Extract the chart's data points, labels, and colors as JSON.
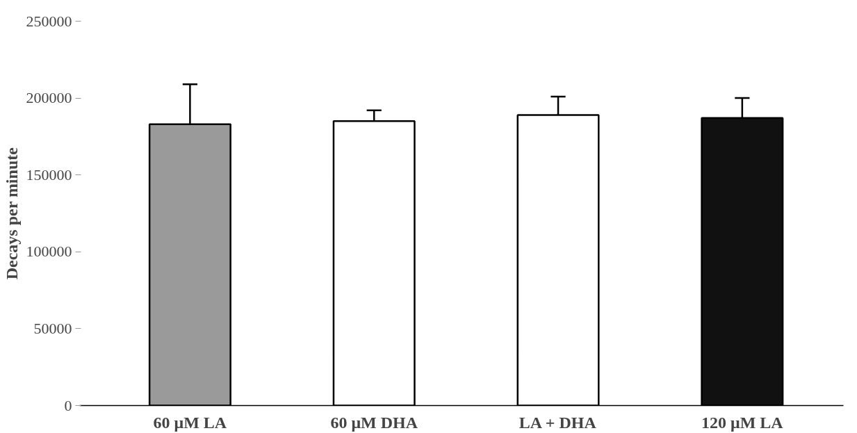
{
  "chart_data": {
    "type": "bar",
    "ylabel": "Decays per minute",
    "categories": [
      "60 μM LA",
      "60 μM DHA",
      "LA + DHA",
      "120 μM LA"
    ],
    "values": [
      183000,
      185000,
      189000,
      187000
    ],
    "colors": [
      "#9a9a9a",
      "#ffffff",
      "#ffffff",
      "#111111"
    ],
    "errors": [
      [
        183000,
        209000
      ],
      [
        185000,
        192000
      ],
      [
        189000,
        201000
      ],
      [
        187000,
        200000
      ]
    ],
    "ylim": [
      0,
      250000
    ],
    "yticks": [
      0,
      50000,
      100000,
      150000,
      200000,
      250000
    ],
    "grid": false
  }
}
